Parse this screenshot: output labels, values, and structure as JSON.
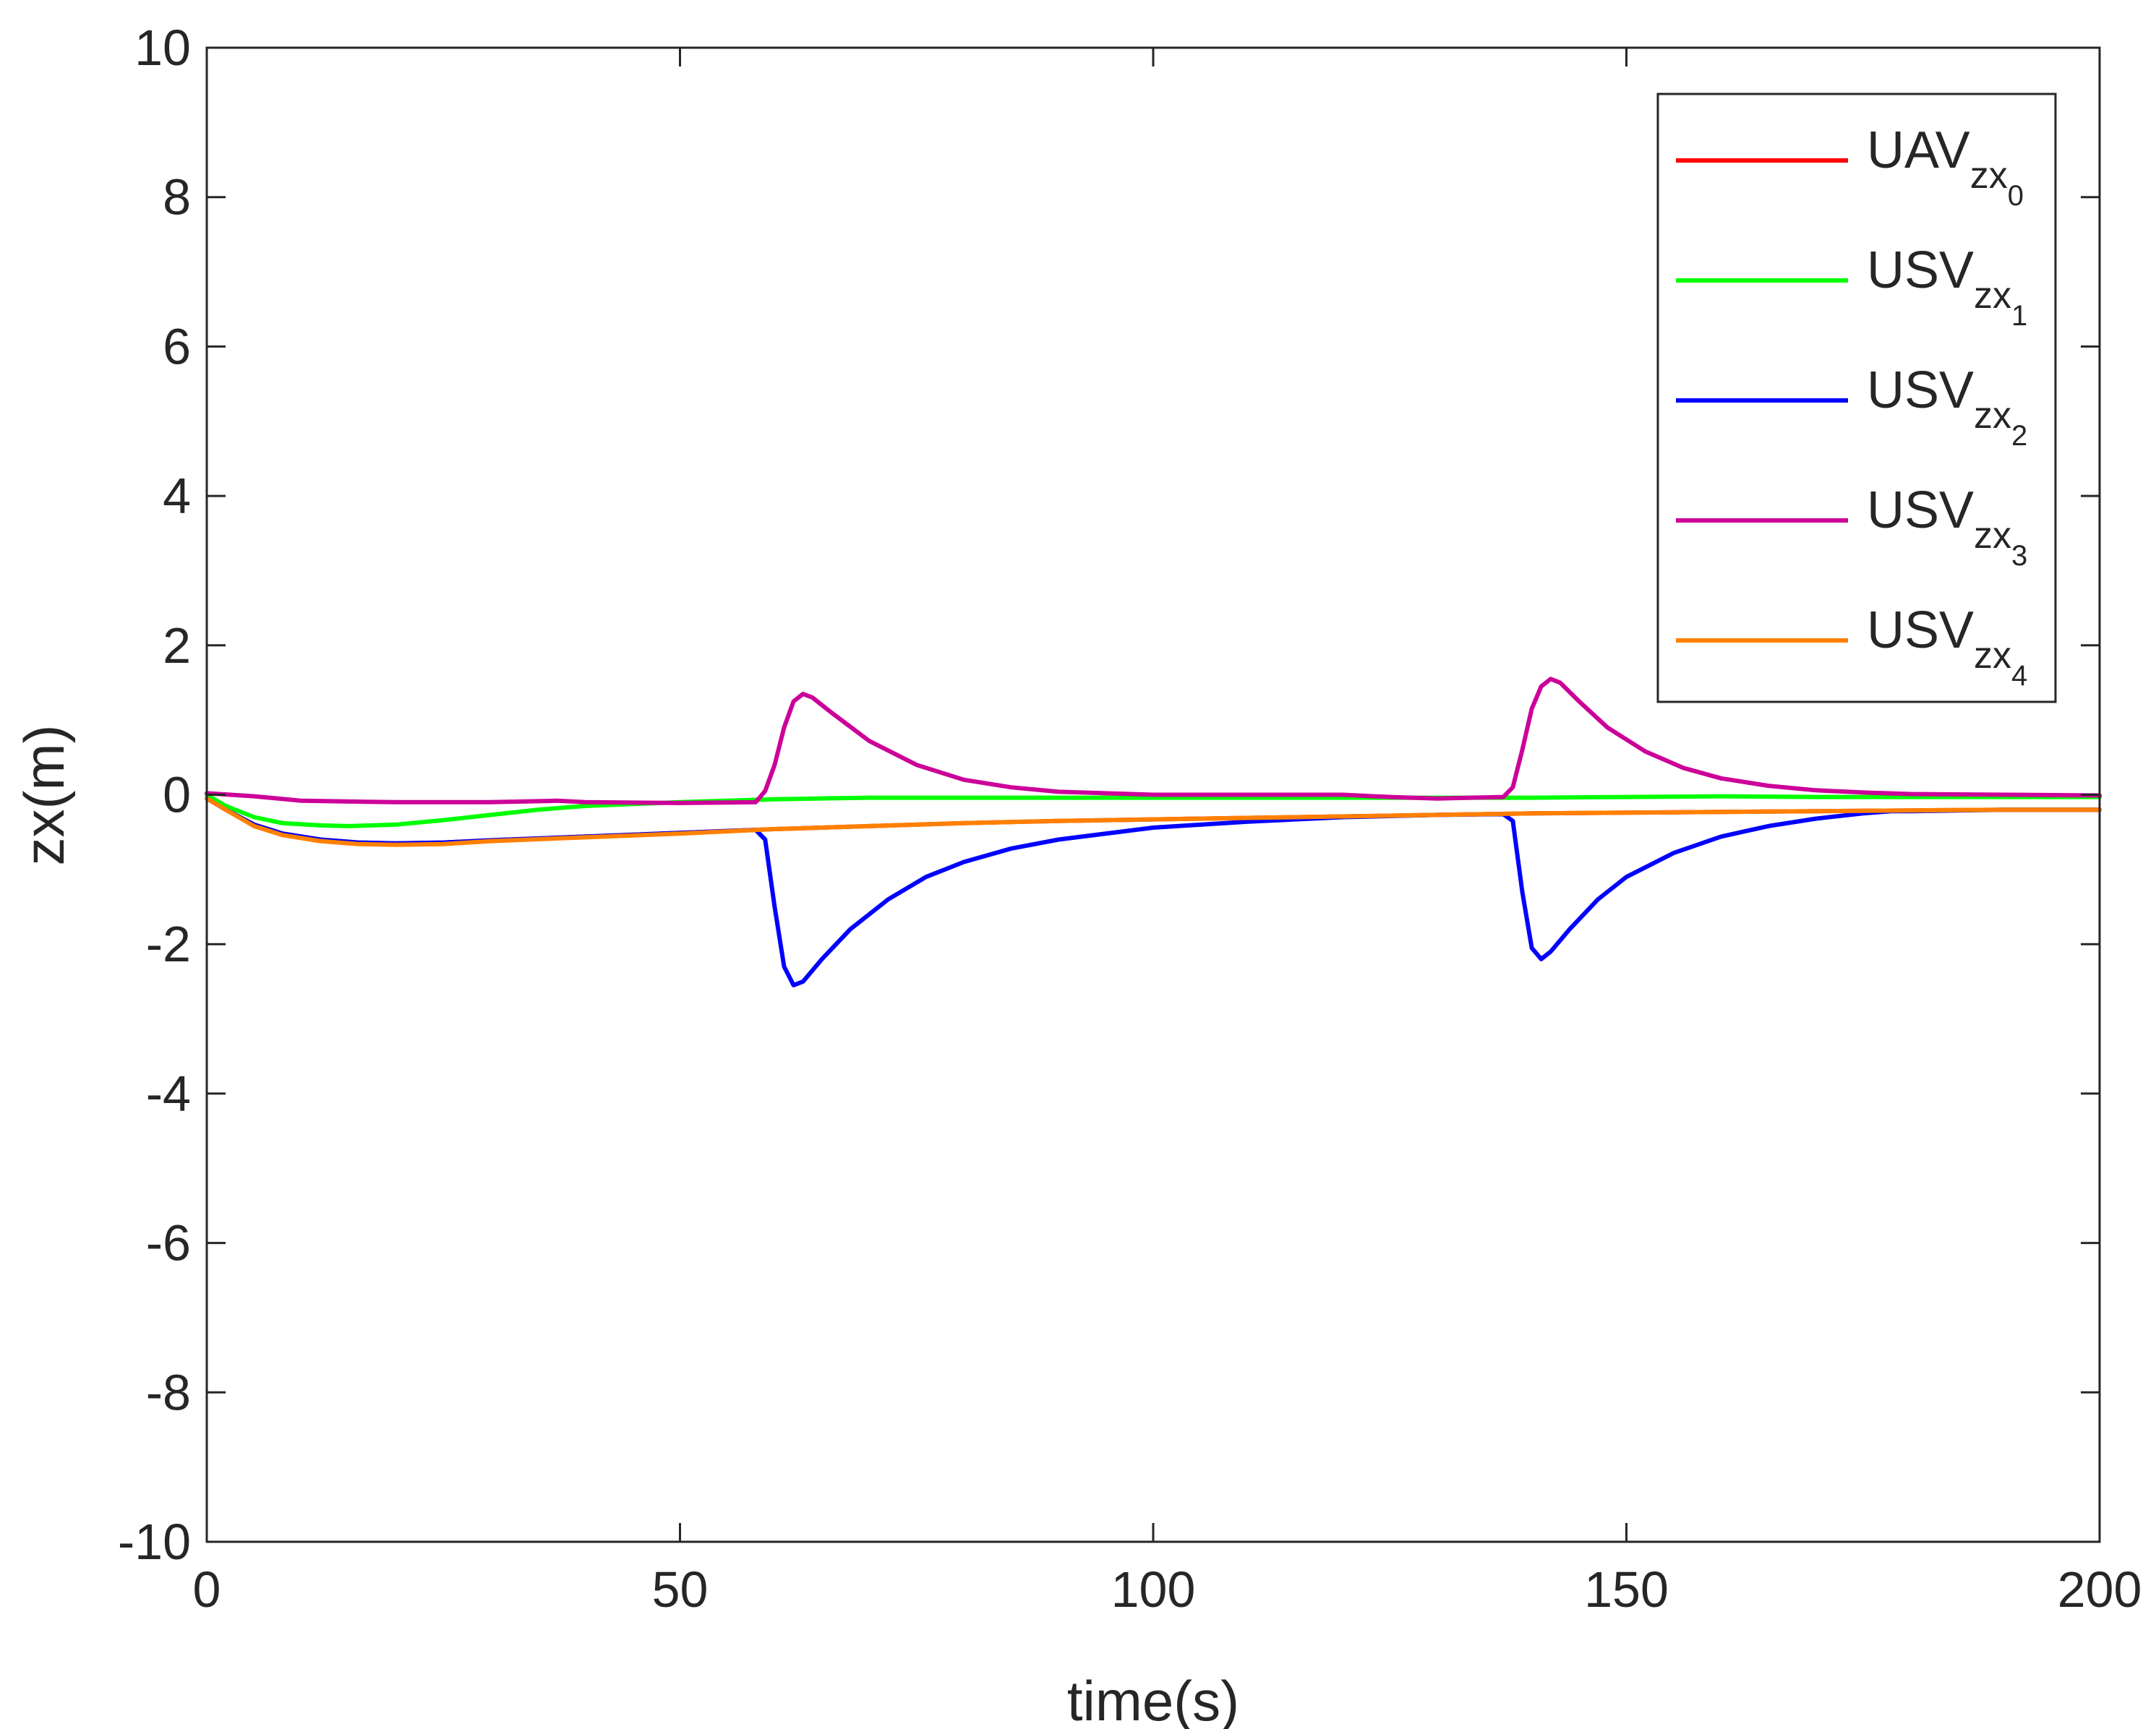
{
  "chart_data": {
    "type": "line",
    "title": "",
    "xlabel": "time(s)",
    "ylabel": "zx(m)",
    "xlim": [
      0,
      200
    ],
    "ylim": [
      -10,
      10
    ],
    "xticks": [
      "0",
      "50",
      "100",
      "150",
      "200"
    ],
    "yticks": [
      "10",
      "8",
      "6",
      "4",
      "2",
      "0",
      "-2",
      "-4",
      "-6",
      "-8",
      "-10"
    ],
    "grid": false,
    "legend_position": "top-right",
    "series": [
      {
        "name": "UAV_zx_0",
        "label_main": "UAV",
        "label_sub": "zx",
        "label_subsub": "0",
        "color": "#ff0000",
        "points": [
          [
            0,
            -0.05
          ],
          [
            2,
            -0.2
          ],
          [
            5,
            -0.4
          ],
          [
            8,
            -0.52
          ],
          [
            12,
            -0.6
          ],
          [
            16,
            -0.64
          ],
          [
            20,
            -0.65
          ],
          [
            25,
            -0.64
          ],
          [
            30,
            -0.61
          ],
          [
            40,
            -0.56
          ],
          [
            50,
            -0.51
          ],
          [
            60,
            -0.46
          ],
          [
            70,
            -0.42
          ],
          [
            80,
            -0.38
          ],
          [
            90,
            -0.35
          ],
          [
            100,
            -0.33
          ],
          [
            110,
            -0.31
          ],
          [
            120,
            -0.29
          ],
          [
            130,
            -0.27
          ],
          [
            140,
            -0.25
          ],
          [
            150,
            -0.24
          ],
          [
            160,
            -0.23
          ],
          [
            170,
            -0.22
          ],
          [
            180,
            -0.21
          ],
          [
            190,
            -0.2
          ],
          [
            200,
            -0.2
          ]
        ]
      },
      {
        "name": "USV_zx_1",
        "label_main": "USV",
        "label_sub": "zx",
        "label_subsub": "1",
        "color": "#00ff00",
        "points": [
          [
            0,
            0
          ],
          [
            2,
            -0.15
          ],
          [
            5,
            -0.3
          ],
          [
            8,
            -0.38
          ],
          [
            12,
            -0.41
          ],
          [
            15,
            -0.42
          ],
          [
            20,
            -0.4
          ],
          [
            25,
            -0.34
          ],
          [
            30,
            -0.27
          ],
          [
            35,
            -0.2
          ],
          [
            40,
            -0.15
          ],
          [
            50,
            -0.1
          ],
          [
            60,
            -0.06
          ],
          [
            70,
            -0.04
          ],
          [
            80,
            -0.04
          ],
          [
            90,
            -0.04
          ],
          [
            100,
            -0.04
          ],
          [
            120,
            -0.04
          ],
          [
            140,
            -0.04
          ],
          [
            150,
            -0.03
          ],
          [
            160,
            -0.02
          ],
          [
            170,
            -0.03
          ],
          [
            180,
            -0.03
          ],
          [
            190,
            -0.03
          ],
          [
            200,
            -0.03
          ]
        ]
      },
      {
        "name": "USV_zx_2",
        "label_main": "USV",
        "label_sub": "zx",
        "label_subsub": "2",
        "color": "#0000ff",
        "points": [
          [
            0,
            -0.05
          ],
          [
            2,
            -0.2
          ],
          [
            5,
            -0.4
          ],
          [
            8,
            -0.52
          ],
          [
            12,
            -0.6
          ],
          [
            16,
            -0.64
          ],
          [
            20,
            -0.65
          ],
          [
            25,
            -0.64
          ],
          [
            30,
            -0.61
          ],
          [
            40,
            -0.56
          ],
          [
            50,
            -0.51
          ],
          [
            58,
            -0.47
          ],
          [
            59,
            -0.6
          ],
          [
            60,
            -1.5
          ],
          [
            61,
            -2.3
          ],
          [
            62,
            -2.55
          ],
          [
            63,
            -2.5
          ],
          [
            65,
            -2.2
          ],
          [
            68,
            -1.8
          ],
          [
            72,
            -1.4
          ],
          [
            76,
            -1.1
          ],
          [
            80,
            -0.9
          ],
          [
            85,
            -0.72
          ],
          [
            90,
            -0.6
          ],
          [
            100,
            -0.44
          ],
          [
            110,
            -0.36
          ],
          [
            120,
            -0.3
          ],
          [
            130,
            -0.27
          ],
          [
            137,
            -0.26
          ],
          [
            138,
            -0.35
          ],
          [
            139,
            -1.3
          ],
          [
            140,
            -2.05
          ],
          [
            141,
            -2.2
          ],
          [
            142,
            -2.1
          ],
          [
            144,
            -1.8
          ],
          [
            147,
            -1.4
          ],
          [
            150,
            -1.1
          ],
          [
            155,
            -0.78
          ],
          [
            160,
            -0.56
          ],
          [
            165,
            -0.42
          ],
          [
            170,
            -0.32
          ],
          [
            175,
            -0.25
          ],
          [
            178,
            -0.22
          ],
          [
            180,
            -0.22
          ],
          [
            190,
            -0.2
          ],
          [
            200,
            -0.2
          ]
        ]
      },
      {
        "name": "USV_zx_3",
        "label_main": "USV",
        "label_sub": "zx",
        "label_subsub": "3",
        "color": "#cc0099",
        "points": [
          [
            0,
            0.02
          ],
          [
            5,
            -0.02
          ],
          [
            10,
            -0.08
          ],
          [
            20,
            -0.1
          ],
          [
            30,
            -0.1
          ],
          [
            37,
            -0.08
          ],
          [
            40,
            -0.1
          ],
          [
            50,
            -0.11
          ],
          [
            58,
            -0.1
          ],
          [
            59,
            0.05
          ],
          [
            60,
            0.4
          ],
          [
            61,
            0.9
          ],
          [
            62,
            1.25
          ],
          [
            63,
            1.35
          ],
          [
            64,
            1.3
          ],
          [
            66,
            1.1
          ],
          [
            70,
            0.72
          ],
          [
            75,
            0.4
          ],
          [
            80,
            0.2
          ],
          [
            85,
            0.1
          ],
          [
            90,
            0.04
          ],
          [
            100,
            0.0
          ],
          [
            110,
            0.0
          ],
          [
            120,
            0.0
          ],
          [
            125,
            -0.03
          ],
          [
            130,
            -0.05
          ],
          [
            137,
            -0.03
          ],
          [
            138,
            0.1
          ],
          [
            139,
            0.6
          ],
          [
            140,
            1.15
          ],
          [
            141,
            1.45
          ],
          [
            142,
            1.55
          ],
          [
            143,
            1.5
          ],
          [
            145,
            1.25
          ],
          [
            148,
            0.9
          ],
          [
            152,
            0.58
          ],
          [
            156,
            0.36
          ],
          [
            160,
            0.22
          ],
          [
            165,
            0.12
          ],
          [
            170,
            0.06
          ],
          [
            175,
            0.03
          ],
          [
            180,
            0.01
          ],
          [
            190,
            0.0
          ],
          [
            200,
            -0.01
          ]
        ]
      },
      {
        "name": "USV_zx_4",
        "label_main": "USV",
        "label_sub": "zx",
        "label_subsub": "4",
        "color": "#ff8000",
        "points": [
          [
            0,
            -0.05
          ],
          [
            2,
            -0.2
          ],
          [
            5,
            -0.42
          ],
          [
            8,
            -0.54
          ],
          [
            12,
            -0.62
          ],
          [
            16,
            -0.66
          ],
          [
            20,
            -0.67
          ],
          [
            25,
            -0.66
          ],
          [
            30,
            -0.62
          ],
          [
            40,
            -0.57
          ],
          [
            50,
            -0.52
          ],
          [
            60,
            -0.46
          ],
          [
            70,
            -0.42
          ],
          [
            80,
            -0.38
          ],
          [
            90,
            -0.35
          ],
          [
            100,
            -0.33
          ],
          [
            110,
            -0.31
          ],
          [
            120,
            -0.29
          ],
          [
            130,
            -0.27
          ],
          [
            140,
            -0.25
          ],
          [
            150,
            -0.24
          ],
          [
            160,
            -0.23
          ],
          [
            170,
            -0.22
          ],
          [
            180,
            -0.21
          ],
          [
            190,
            -0.2
          ],
          [
            200,
            -0.2
          ]
        ]
      }
    ]
  }
}
